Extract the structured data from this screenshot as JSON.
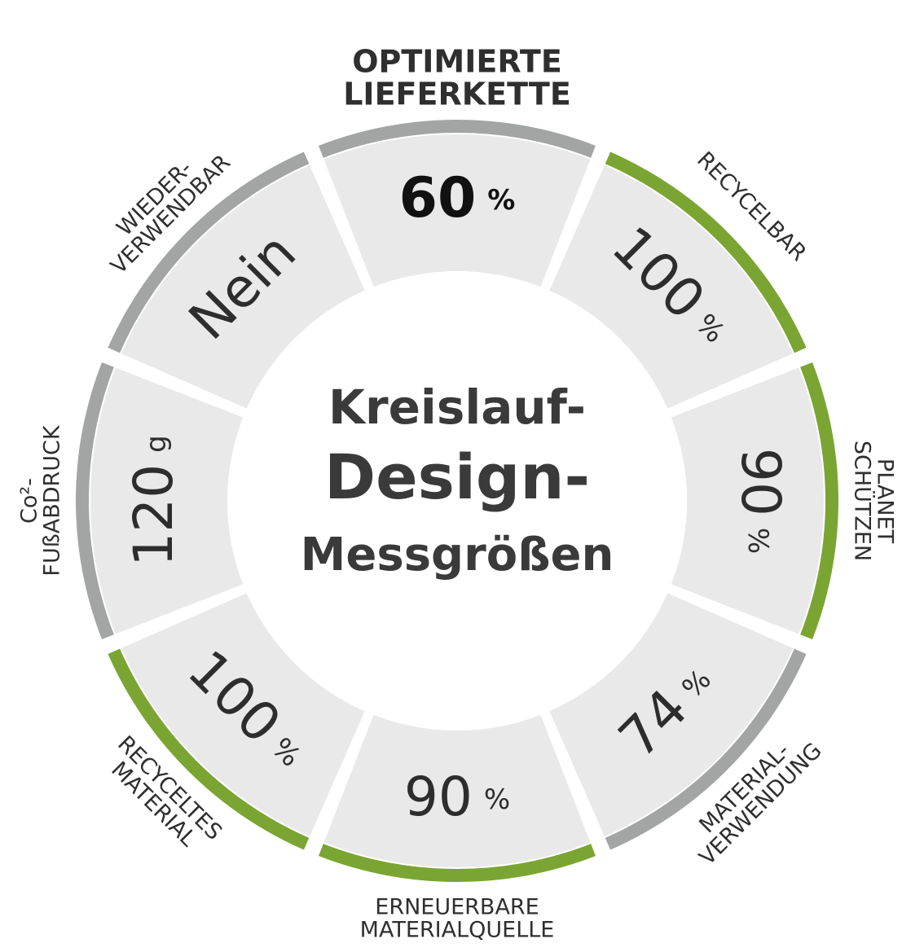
{
  "title": {
    "line1": "Kreislauf-",
    "line2": "Design-",
    "line3": "Messgrößen"
  },
  "colors": {
    "segment_fill": "#e9e9e9",
    "ring_green": "#7aa532",
    "ring_gray": "#a3a5a5",
    "text_dark": "#2d2d2d"
  },
  "segments": [
    {
      "id": "optimierte-lieferkette",
      "label_lines": [
        "OPTIMIERTE",
        "LIEFERKETTE"
      ],
      "value": "60",
      "unit": "%",
      "ring": "gray"
    },
    {
      "id": "recycelbar",
      "label_lines": [
        "RECYCELBAR"
      ],
      "value": "100",
      "unit": "%",
      "ring": "green"
    },
    {
      "id": "planet-schuetzen",
      "label_lines": [
        "PLANET",
        "SCHÜTZEN"
      ],
      "value": "90",
      "unit": "%",
      "ring": "green"
    },
    {
      "id": "materialverwendung",
      "label_lines": [
        "MATERIAL-",
        "VERWENDUNG"
      ],
      "value": "74",
      "unit": "%",
      "ring": "gray"
    },
    {
      "id": "erneuerbare-materialquelle",
      "label_lines": [
        "ERNEUERBARE",
        "MATERIALQUELLE"
      ],
      "value": "90",
      "unit": "%",
      "ring": "green"
    },
    {
      "id": "recyceltes-material",
      "label_lines": [
        "RECYCELTES",
        "MATERIAL"
      ],
      "value": "100",
      "unit": "%",
      "ring": "green"
    },
    {
      "id": "co2-fussabdruck",
      "label_lines": [
        "Co²-",
        "FUßABDRUCK"
      ],
      "value": "120",
      "unit": "g",
      "ring": "gray"
    },
    {
      "id": "wiederverwendbar",
      "label_lines": [
        "WIEDER-",
        "VERWENDBAR"
      ],
      "value": "Nein",
      "unit": "",
      "ring": "gray"
    }
  ]
}
